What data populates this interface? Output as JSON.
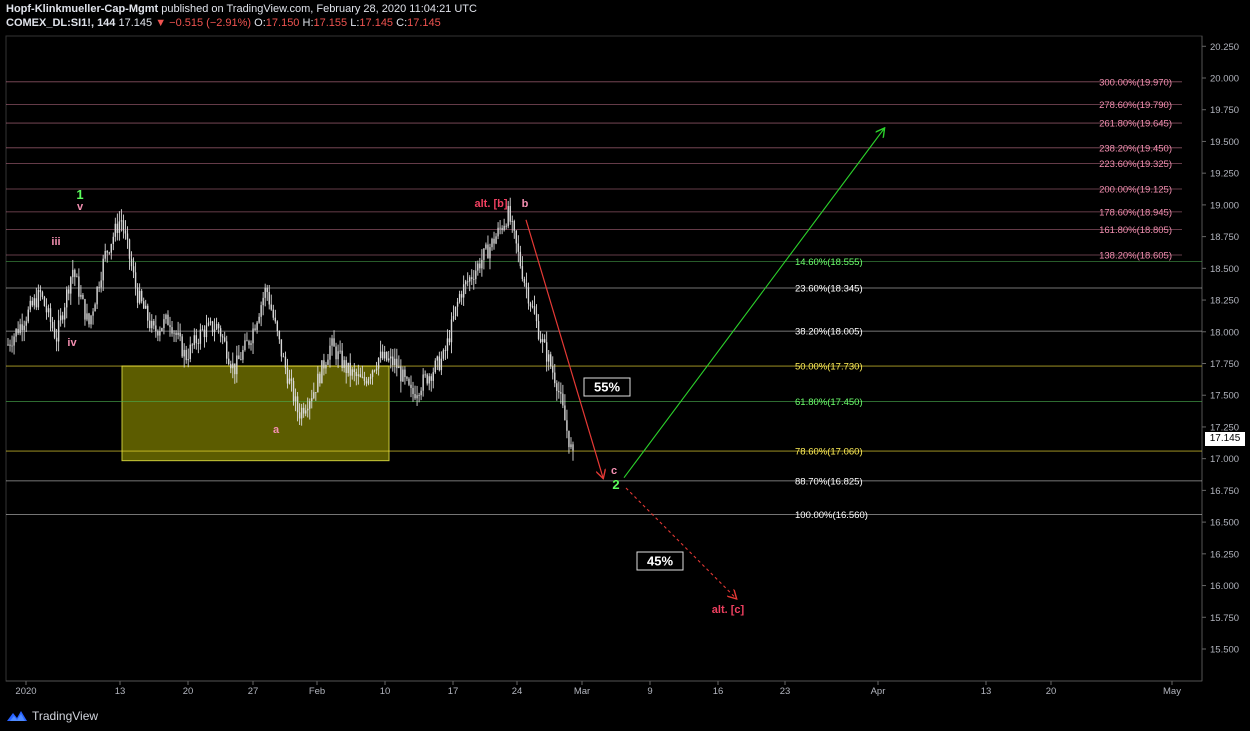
{
  "header": {
    "publisher": "Hopf-Klinkmueller-Cap-Mgmt",
    "published_text": "published on TradingView.com, February 28, 2020 11:04:21 UTC",
    "symbol": "COMEX_DL:SI1!, 144",
    "last": "17.145",
    "change": "▼ −0.515 (−2.91%)",
    "o_label": "O:",
    "o_value": "17.150",
    "h_label": "H:",
    "h_value": "17.155",
    "l_label": "L:",
    "l_value": "17.145",
    "c_label": "C:",
    "c_value": "17.145"
  },
  "branding": {
    "label": "TradingView",
    "icon": "tradingview-logo-icon"
  },
  "last_price_label": "17.145",
  "colors": {
    "bg": "#000000",
    "candle": "#d9d9d9",
    "fib_pink": "#f48fb1",
    "fib_green": "#4caf50",
    "fib_yellow": "#ffeb3b",
    "fib_white": "#e0e0e0",
    "zone_fill": "#808000",
    "up_arrow": "#2bd12b",
    "down_arrow": "#e53935",
    "wave_green": "#5cff5c",
    "wave_pink": "#f48fb1",
    "wave_red": "#ef4060"
  },
  "chart_data": {
    "type": "candlestick",
    "y_axis_ticks": [
      "20.250",
      "20.000",
      "19.750",
      "19.500",
      "19.250",
      "19.000",
      "18.750",
      "18.500",
      "18.250",
      "18.000",
      "17.750",
      "17.500",
      "17.250",
      "17.000",
      "16.750",
      "16.500",
      "16.250",
      "16.000",
      "15.750",
      "15.500"
    ],
    "x_axis_ticks": [
      "2020",
      "13",
      "20",
      "27",
      "Feb",
      "10",
      "17",
      "24",
      "Mar",
      "9",
      "16",
      "23",
      "Apr",
      "13",
      "20",
      "May"
    ],
    "ylim": [
      15.25,
      20.35
    ],
    "price_path": [
      {
        "date": "Jan 1",
        "price": 17.9
      },
      {
        "date": "Jan 2",
        "price": 18.1
      },
      {
        "date": "Jan 3",
        "price": 18.3
      },
      {
        "date": "Jan 5",
        "price": 17.95
      },
      {
        "date": "Jan 6",
        "price": 18.5
      },
      {
        "date": "Jan 7",
        "price": 18.05
      },
      {
        "date": "Jan 8",
        "price": 18.6
      },
      {
        "date": "Jan 8b",
        "price": 18.9
      },
      {
        "date": "Jan 9",
        "price": 18.3
      },
      {
        "date": "Jan 10",
        "price": 18.0
      },
      {
        "date": "Jan 13",
        "price": 18.1
      },
      {
        "date": "Jan 14",
        "price": 17.8
      },
      {
        "date": "Jan 16",
        "price": 18.0
      },
      {
        "date": "Jan 20",
        "price": 18.05
      },
      {
        "date": "Jan 22",
        "price": 17.7
      },
      {
        "date": "Jan 24",
        "price": 17.95
      },
      {
        "date": "Jan 27",
        "price": 18.35
      },
      {
        "date": "Jan 28",
        "price": 17.8
      },
      {
        "date": "Jan 29",
        "price": 17.35
      },
      {
        "date": "Jan 30",
        "price": 17.55
      },
      {
        "date": "Jan 31",
        "price": 17.9
      },
      {
        "date": "Feb 2",
        "price": 17.7
      },
      {
        "date": "Feb 5",
        "price": 17.6
      },
      {
        "date": "Feb 7",
        "price": 17.8
      },
      {
        "date": "Feb 10",
        "price": 17.75
      },
      {
        "date": "Feb 12",
        "price": 17.5
      },
      {
        "date": "Feb 14",
        "price": 17.65
      },
      {
        "date": "Feb 17",
        "price": 17.8
      },
      {
        "date": "Feb 19",
        "price": 18.3
      },
      {
        "date": "Feb 21",
        "price": 18.5
      },
      {
        "date": "Feb 23",
        "price": 18.7
      },
      {
        "date": "Feb 24",
        "price": 18.93
      },
      {
        "date": "Feb 25",
        "price": 18.4
      },
      {
        "date": "Feb 26",
        "price": 17.95
      },
      {
        "date": "Feb 27",
        "price": 17.6
      },
      {
        "date": "Feb 28",
        "price": 17.0
      }
    ],
    "fib_levels": [
      {
        "label": "300.00%(19.970)",
        "value": 19.97,
        "group": "pink"
      },
      {
        "label": "278.60%(19.790)",
        "value": 19.79,
        "group": "pink"
      },
      {
        "label": "261.80%(19.645)",
        "value": 19.645,
        "group": "pink"
      },
      {
        "label": "238.20%(19.450)",
        "value": 19.45,
        "group": "pink"
      },
      {
        "label": "223.60%(19.325)",
        "value": 19.325,
        "group": "pink"
      },
      {
        "label": "200.00%(19.125)",
        "value": 19.125,
        "group": "pink"
      },
      {
        "label": "178.60%(18.945)",
        "value": 18.945,
        "group": "pink"
      },
      {
        "label": "161.80%(18.805)",
        "value": 18.805,
        "group": "pink"
      },
      {
        "label": "138.20%(18.605)",
        "value": 18.605,
        "group": "pink"
      },
      {
        "label": "14.60%(18.555)",
        "value": 18.555,
        "group": "green"
      },
      {
        "label": "23.60%(18.345)",
        "value": 18.345,
        "group": "white"
      },
      {
        "label": "38.20%(18.005)",
        "value": 18.005,
        "group": "white"
      },
      {
        "label": "50.00%(17.730)",
        "value": 17.73,
        "group": "yellow"
      },
      {
        "label": "61.80%(17.450)",
        "value": 17.45,
        "group": "green"
      },
      {
        "label": "78.60%(17.060)",
        "value": 17.06,
        "group": "yellow"
      },
      {
        "label": "88.70%(16.825)",
        "value": 16.825,
        "group": "white"
      },
      {
        "label": "100.00%(16.560)",
        "value": 16.56,
        "group": "white"
      }
    ],
    "wave_labels": [
      {
        "text": "1",
        "color": "green"
      },
      {
        "text": "v",
        "color": "pink"
      },
      {
        "text": "iii",
        "color": "pink"
      },
      {
        "text": "iv",
        "color": "pink"
      },
      {
        "text": "a",
        "color": "pink"
      },
      {
        "text": "alt. [b]",
        "color": "red"
      },
      {
        "text": "b",
        "color": "pink"
      },
      {
        "text": "c",
        "color": "pink"
      },
      {
        "text": "2",
        "color": "green"
      },
      {
        "text": "alt. [c]",
        "color": "red"
      }
    ],
    "scenarios": [
      {
        "label": "55%",
        "path": "down from 18.93 to ~16.85"
      },
      {
        "label": "45%",
        "path": "dashed down to ~15.9"
      }
    ],
    "zone": {
      "from": 17.0,
      "to": 17.73
    },
    "grid": false
  }
}
